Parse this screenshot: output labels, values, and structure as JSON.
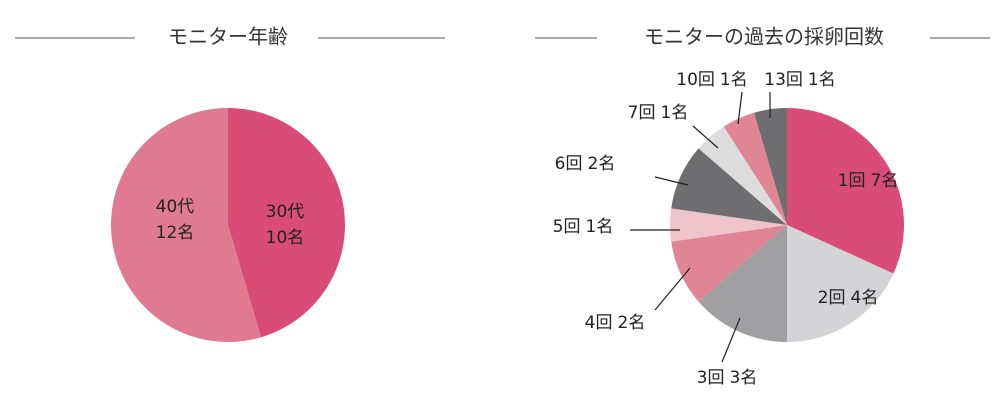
{
  "chart_data": [
    {
      "type": "pie",
      "title": "モニター年齢",
      "categories": [
        "30代",
        "40代"
      ],
      "values": [
        10,
        12
      ],
      "value_labels": [
        "10名",
        "12名"
      ],
      "colors": [
        "#d94c78",
        "#e07a93"
      ]
    },
    {
      "type": "pie",
      "title": "モニターの過去の採卵回数",
      "categories": [
        "1回",
        "2回",
        "3回",
        "4回",
        "5回",
        "6回",
        "7回",
        "10回",
        "13回"
      ],
      "values": [
        7,
        4,
        3,
        2,
        1,
        2,
        1,
        1,
        1
      ],
      "value_labels": [
        "7名",
        "4名",
        "3名",
        "2名",
        "1名",
        "2名",
        "1名",
        "1名",
        "1名"
      ],
      "colors": [
        "#d94c78",
        "#d4d4d6",
        "#a0a0a2",
        "#e08593",
        "#f0c4cc",
        "#6e6e70",
        "#dcdcdd",
        "#e08593",
        "#6e6e70"
      ]
    }
  ]
}
